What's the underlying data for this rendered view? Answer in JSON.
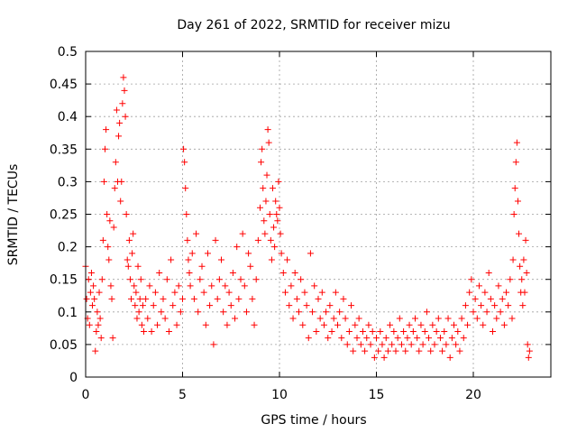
{
  "chart_data": {
    "type": "scatter",
    "title": "Day 261 of 2022, SRMTID for receiver mizu",
    "xlabel": "GPS time / hours",
    "ylabel": "SRMTID / TECUs",
    "xlim": [
      0,
      24
    ],
    "ylim": [
      0,
      0.5
    ],
    "grid": true,
    "marker": "+",
    "x_ticks": [
      0,
      5,
      10,
      15,
      20
    ],
    "x_tick_labels": [
      "0",
      "5",
      "10",
      "15",
      "20"
    ],
    "y_ticks": [
      0,
      0.05,
      0.1,
      0.15,
      0.2,
      0.25,
      0.3,
      0.35,
      0.4,
      0.45,
      0.5
    ],
    "y_tick_labels": [
      "0",
      "0.05",
      "0.1",
      "0.15",
      "0.2",
      "0.25",
      "0.3",
      "0.35",
      "0.4",
      "0.45",
      "0.5"
    ],
    "series": [
      {
        "name": "SRMTID",
        "color": "#ff0000",
        "points": [
          [
            0.0,
            0.17
          ],
          [
            0.05,
            0.12
          ],
          [
            0.1,
            0.09
          ],
          [
            0.15,
            0.15
          ],
          [
            0.2,
            0.08
          ],
          [
            0.25,
            0.13
          ],
          [
            0.3,
            0.16
          ],
          [
            0.35,
            0.11
          ],
          [
            0.4,
            0.14
          ],
          [
            0.45,
            0.12
          ],
          [
            0.5,
            0.04
          ],
          [
            0.55,
            0.07
          ],
          [
            0.6,
            0.1
          ],
          [
            0.65,
            0.08
          ],
          [
            0.7,
            0.13
          ],
          [
            0.75,
            0.09
          ],
          [
            0.8,
            0.06
          ],
          [
            0.85,
            0.15
          ],
          [
            0.9,
            0.21
          ],
          [
            0.95,
            0.3
          ],
          [
            1.0,
            0.35
          ],
          [
            1.05,
            0.38
          ],
          [
            1.1,
            0.25
          ],
          [
            1.15,
            0.2
          ],
          [
            1.2,
            0.18
          ],
          [
            1.25,
            0.24
          ],
          [
            1.3,
            0.14
          ],
          [
            1.35,
            0.12
          ],
          [
            1.4,
            0.06
          ],
          [
            1.45,
            0.23
          ],
          [
            1.5,
            0.29
          ],
          [
            1.55,
            0.33
          ],
          [
            1.6,
            0.41
          ],
          [
            1.65,
            0.3
          ],
          [
            1.7,
            0.37
          ],
          [
            1.75,
            0.39
          ],
          [
            1.8,
            0.27
          ],
          [
            1.85,
            0.3
          ],
          [
            1.9,
            0.42
          ],
          [
            1.95,
            0.46
          ],
          [
            2.0,
            0.44
          ],
          [
            2.05,
            0.4
          ],
          [
            2.1,
            0.25
          ],
          [
            2.15,
            0.18
          ],
          [
            2.2,
            0.17
          ],
          [
            2.25,
            0.21
          ],
          [
            2.3,
            0.15
          ],
          [
            2.35,
            0.12
          ],
          [
            2.4,
            0.19
          ],
          [
            2.45,
            0.22
          ],
          [
            2.5,
            0.14
          ],
          [
            2.55,
            0.11
          ],
          [
            2.6,
            0.13
          ],
          [
            2.65,
            0.09
          ],
          [
            2.7,
            0.17
          ],
          [
            2.75,
            0.1
          ],
          [
            2.8,
            0.12
          ],
          [
            2.85,
            0.15
          ],
          [
            2.9,
            0.08
          ],
          [
            2.95,
            0.11
          ],
          [
            3.0,
            0.07
          ],
          [
            3.1,
            0.12
          ],
          [
            3.2,
            0.09
          ],
          [
            3.3,
            0.14
          ],
          [
            3.4,
            0.07
          ],
          [
            3.5,
            0.11
          ],
          [
            3.6,
            0.13
          ],
          [
            3.7,
            0.08
          ],
          [
            3.8,
            0.16
          ],
          [
            3.9,
            0.1
          ],
          [
            4.0,
            0.12
          ],
          [
            4.1,
            0.09
          ],
          [
            4.2,
            0.15
          ],
          [
            4.3,
            0.07
          ],
          [
            4.4,
            0.18
          ],
          [
            4.5,
            0.11
          ],
          [
            4.6,
            0.13
          ],
          [
            4.7,
            0.08
          ],
          [
            4.8,
            0.14
          ],
          [
            4.9,
            0.1
          ],
          [
            5.0,
            0.12
          ],
          [
            5.05,
            0.35
          ],
          [
            5.1,
            0.33
          ],
          [
            5.15,
            0.29
          ],
          [
            5.2,
            0.25
          ],
          [
            5.25,
            0.21
          ],
          [
            5.3,
            0.18
          ],
          [
            5.35,
            0.16
          ],
          [
            5.4,
            0.14
          ],
          [
            5.5,
            0.19
          ],
          [
            5.6,
            0.12
          ],
          [
            5.7,
            0.22
          ],
          [
            5.8,
            0.1
          ],
          [
            5.9,
            0.15
          ],
          [
            6.0,
            0.17
          ],
          [
            6.1,
            0.13
          ],
          [
            6.2,
            0.08
          ],
          [
            6.3,
            0.19
          ],
          [
            6.4,
            0.11
          ],
          [
            6.5,
            0.14
          ],
          [
            6.6,
            0.05
          ],
          [
            6.7,
            0.21
          ],
          [
            6.8,
            0.12
          ],
          [
            6.9,
            0.15
          ],
          [
            7.0,
            0.18
          ],
          [
            7.1,
            0.1
          ],
          [
            7.2,
            0.14
          ],
          [
            7.3,
            0.08
          ],
          [
            7.4,
            0.13
          ],
          [
            7.5,
            0.11
          ],
          [
            7.6,
            0.16
          ],
          [
            7.7,
            0.09
          ],
          [
            7.8,
            0.2
          ],
          [
            7.9,
            0.12
          ],
          [
            8.0,
            0.15
          ],
          [
            8.1,
            0.22
          ],
          [
            8.2,
            0.14
          ],
          [
            8.3,
            0.1
          ],
          [
            8.4,
            0.19
          ],
          [
            8.5,
            0.17
          ],
          [
            8.6,
            0.12
          ],
          [
            8.7,
            0.08
          ],
          [
            8.8,
            0.15
          ],
          [
            8.9,
            0.21
          ],
          [
            9.0,
            0.26
          ],
          [
            9.05,
            0.33
          ],
          [
            9.1,
            0.35
          ],
          [
            9.15,
            0.29
          ],
          [
            9.2,
            0.24
          ],
          [
            9.25,
            0.22
          ],
          [
            9.3,
            0.27
          ],
          [
            9.35,
            0.31
          ],
          [
            9.4,
            0.38
          ],
          [
            9.45,
            0.36
          ],
          [
            9.5,
            0.25
          ],
          [
            9.55,
            0.21
          ],
          [
            9.6,
            0.18
          ],
          [
            9.65,
            0.29
          ],
          [
            9.7,
            0.23
          ],
          [
            9.75,
            0.2
          ],
          [
            9.8,
            0.27
          ],
          [
            9.85,
            0.25
          ],
          [
            9.9,
            0.24
          ],
          [
            9.95,
            0.3
          ],
          [
            10.0,
            0.26
          ],
          [
            10.05,
            0.22
          ],
          [
            10.1,
            0.19
          ],
          [
            10.2,
            0.16
          ],
          [
            10.3,
            0.13
          ],
          [
            10.4,
            0.18
          ],
          [
            10.5,
            0.11
          ],
          [
            10.6,
            0.14
          ],
          [
            10.7,
            0.09
          ],
          [
            10.8,
            0.16
          ],
          [
            10.9,
            0.12
          ],
          [
            11.0,
            0.1
          ],
          [
            11.1,
            0.15
          ],
          [
            11.2,
            0.08
          ],
          [
            11.3,
            0.13
          ],
          [
            11.4,
            0.11
          ],
          [
            11.5,
            0.06
          ],
          [
            11.6,
            0.19
          ],
          [
            11.7,
            0.1
          ],
          [
            11.8,
            0.14
          ],
          [
            11.9,
            0.07
          ],
          [
            12.0,
            0.12
          ],
          [
            12.1,
            0.09
          ],
          [
            12.2,
            0.13
          ],
          [
            12.3,
            0.08
          ],
          [
            12.4,
            0.1
          ],
          [
            12.5,
            0.06
          ],
          [
            12.6,
            0.11
          ],
          [
            12.7,
            0.07
          ],
          [
            12.8,
            0.09
          ],
          [
            12.9,
            0.13
          ],
          [
            13.0,
            0.08
          ],
          [
            13.1,
            0.1
          ],
          [
            13.2,
            0.06
          ],
          [
            13.3,
            0.12
          ],
          [
            13.4,
            0.09
          ],
          [
            13.5,
            0.05
          ],
          [
            13.6,
            0.07
          ],
          [
            13.7,
            0.11
          ],
          [
            13.8,
            0.04
          ],
          [
            13.9,
            0.08
          ],
          [
            14.0,
            0.06
          ],
          [
            14.1,
            0.09
          ],
          [
            14.2,
            0.05
          ],
          [
            14.3,
            0.07
          ],
          [
            14.4,
            0.04
          ],
          [
            14.5,
            0.06
          ],
          [
            14.6,
            0.08
          ],
          [
            14.7,
            0.05
          ],
          [
            14.8,
            0.07
          ],
          [
            14.9,
            0.03
          ],
          [
            15.0,
            0.06
          ],
          [
            15.1,
            0.04
          ],
          [
            15.2,
            0.07
          ],
          [
            15.3,
            0.05
          ],
          [
            15.4,
            0.03
          ],
          [
            15.5,
            0.06
          ],
          [
            15.6,
            0.04
          ],
          [
            15.7,
            0.08
          ],
          [
            15.8,
            0.05
          ],
          [
            15.9,
            0.07
          ],
          [
            16.0,
            0.04
          ],
          [
            16.1,
            0.06
          ],
          [
            16.2,
            0.09
          ],
          [
            16.3,
            0.05
          ],
          [
            16.4,
            0.07
          ],
          [
            16.5,
            0.04
          ],
          [
            16.6,
            0.06
          ],
          [
            16.7,
            0.08
          ],
          [
            16.8,
            0.05
          ],
          [
            16.9,
            0.07
          ],
          [
            17.0,
            0.09
          ],
          [
            17.1,
            0.06
          ],
          [
            17.2,
            0.04
          ],
          [
            17.3,
            0.08
          ],
          [
            17.4,
            0.05
          ],
          [
            17.5,
            0.07
          ],
          [
            17.6,
            0.1
          ],
          [
            17.7,
            0.06
          ],
          [
            17.8,
            0.04
          ],
          [
            17.9,
            0.08
          ],
          [
            18.0,
            0.05
          ],
          [
            18.1,
            0.07
          ],
          [
            18.2,
            0.09
          ],
          [
            18.3,
            0.06
          ],
          [
            18.4,
            0.04
          ],
          [
            18.5,
            0.07
          ],
          [
            18.6,
            0.05
          ],
          [
            18.7,
            0.09
          ],
          [
            18.8,
            0.03
          ],
          [
            18.9,
            0.06
          ],
          [
            19.0,
            0.08
          ],
          [
            19.1,
            0.05
          ],
          [
            19.2,
            0.07
          ],
          [
            19.3,
            0.04
          ],
          [
            19.4,
            0.09
          ],
          [
            19.5,
            0.06
          ],
          [
            19.6,
            0.11
          ],
          [
            19.7,
            0.08
          ],
          [
            19.8,
            0.13
          ],
          [
            19.9,
            0.15
          ],
          [
            20.0,
            0.1
          ],
          [
            20.1,
            0.12
          ],
          [
            20.2,
            0.09
          ],
          [
            20.3,
            0.14
          ],
          [
            20.4,
            0.11
          ],
          [
            20.5,
            0.08
          ],
          [
            20.6,
            0.13
          ],
          [
            20.7,
            0.1
          ],
          [
            20.8,
            0.16
          ],
          [
            20.9,
            0.12
          ],
          [
            21.0,
            0.07
          ],
          [
            21.1,
            0.11
          ],
          [
            21.2,
            0.09
          ],
          [
            21.3,
            0.14
          ],
          [
            21.4,
            0.1
          ],
          [
            21.5,
            0.12
          ],
          [
            21.6,
            0.08
          ],
          [
            21.7,
            0.13
          ],
          [
            21.8,
            0.11
          ],
          [
            21.9,
            0.15
          ],
          [
            22.0,
            0.09
          ],
          [
            22.05,
            0.18
          ],
          [
            22.1,
            0.25
          ],
          [
            22.15,
            0.29
          ],
          [
            22.2,
            0.33
          ],
          [
            22.25,
            0.36
          ],
          [
            22.3,
            0.27
          ],
          [
            22.35,
            0.22
          ],
          [
            22.4,
            0.17
          ],
          [
            22.45,
            0.13
          ],
          [
            22.5,
            0.15
          ],
          [
            22.55,
            0.11
          ],
          [
            22.6,
            0.18
          ],
          [
            22.65,
            0.13
          ],
          [
            22.7,
            0.21
          ],
          [
            22.75,
            0.16
          ],
          [
            22.8,
            0.05
          ],
          [
            22.85,
            0.03
          ],
          [
            22.9,
            0.04
          ]
        ]
      }
    ]
  }
}
